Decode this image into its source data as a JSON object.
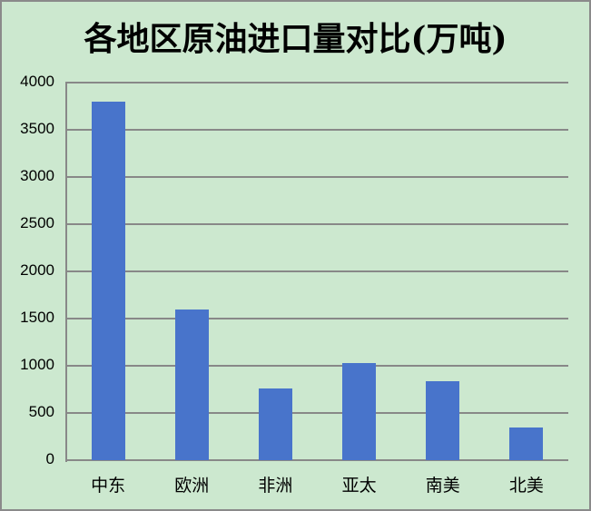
{
  "chart_data": {
    "type": "bar",
    "title": "各地区原油进口量对比(万吨)",
    "categories": [
      "中东",
      "欧洲",
      "非洲",
      "亚太",
      "南美",
      "北美"
    ],
    "values": [
      3800,
      1600,
      760,
      1030,
      840,
      350
    ],
    "xlabel": "",
    "ylabel": "",
    "ylim": [
      0,
      4000
    ],
    "yticks": [
      "0",
      "500",
      "1000",
      "1500",
      "2000",
      "2500",
      "3000",
      "3500",
      "4000"
    ],
    "grid": true,
    "legend": null,
    "colors": {
      "bar": "#4874cb",
      "background": "#cce8cf",
      "grid": "#888888"
    }
  }
}
